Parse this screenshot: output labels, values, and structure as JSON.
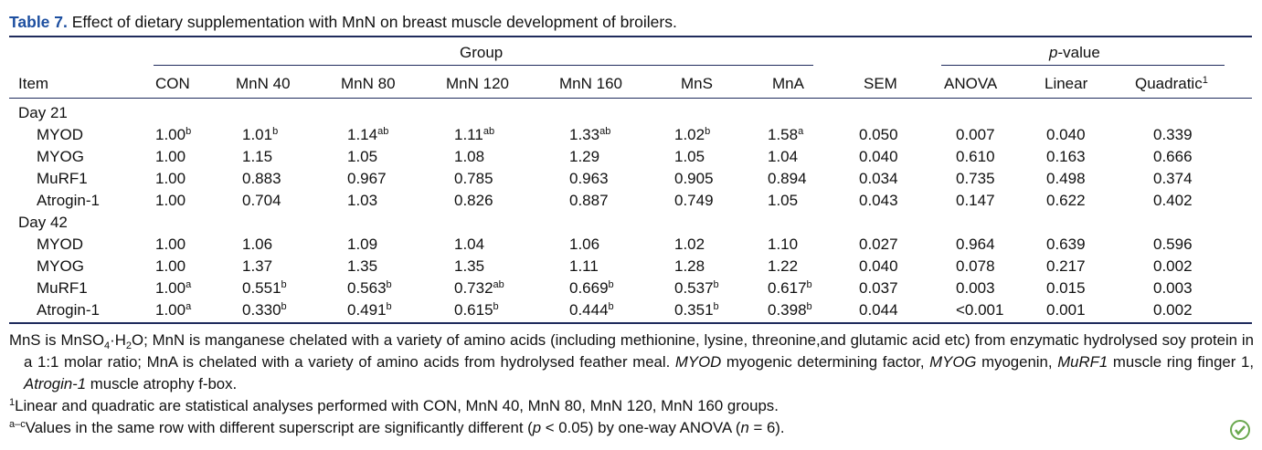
{
  "caption": {
    "label": "Table 7.",
    "text": "Effect of dietary supplementation with MnN on breast muscle development of broilers."
  },
  "table": {
    "group_header": "Group",
    "pvalue_header": {
      "italic": "p",
      "rest": "-value"
    },
    "columns": [
      "Item",
      "CON",
      "MnN 40",
      "MnN 80",
      "MnN 120",
      "MnN 160",
      "MnS",
      "MnA",
      "SEM",
      "ANOVA",
      "Linear",
      {
        "text": "Quadratic",
        "sup": "1"
      }
    ],
    "sections": [
      {
        "label": "Day 21",
        "rows": [
          {
            "item": "MYOD",
            "cells": [
              {
                "text": "1.00",
                "sup": "b"
              },
              {
                "text": "1.01",
                "sup": "b"
              },
              {
                "text": "1.14",
                "sup": "ab"
              },
              {
                "text": "1.11",
                "sup": "ab"
              },
              {
                "text": "1.33",
                "sup": "ab"
              },
              {
                "text": "1.02",
                "sup": "b"
              },
              {
                "text": "1.58",
                "sup": "a"
              },
              "0.050",
              "0.007",
              "0.040",
              "0.339"
            ]
          },
          {
            "item": "MYOG",
            "cells": [
              "1.00",
              "1.15",
              "1.05",
              "1.08",
              "1.29",
              "1.05",
              "1.04",
              "0.040",
              "0.610",
              "0.163",
              "0.666"
            ]
          },
          {
            "item": "MuRF1",
            "cells": [
              "1.00",
              "0.883",
              "0.967",
              "0.785",
              "0.963",
              "0.905",
              "0.894",
              "0.034",
              "0.735",
              "0.498",
              "0.374"
            ]
          },
          {
            "item": "Atrogin-1",
            "cells": [
              "1.00",
              "0.704",
              "1.03",
              "0.826",
              "0.887",
              "0.749",
              "1.05",
              "0.043",
              "0.147",
              "0.622",
              "0.402"
            ]
          }
        ]
      },
      {
        "label": "Day 42",
        "rows": [
          {
            "item": "MYOD",
            "cells": [
              "1.00",
              "1.06",
              "1.09",
              "1.04",
              "1.06",
              "1.02",
              "1.10",
              "0.027",
              "0.964",
              "0.639",
              "0.596"
            ]
          },
          {
            "item": "MYOG",
            "cells": [
              "1.00",
              "1.37",
              "1.35",
              "1.35",
              "1.11",
              "1.28",
              "1.22",
              "0.040",
              "0.078",
              "0.217",
              "0.002"
            ]
          },
          {
            "item": "MuRF1",
            "cells": [
              {
                "text": "1.00",
                "sup": "a"
              },
              {
                "text": "0.551",
                "sup": "b"
              },
              {
                "text": "0.563",
                "sup": "b"
              },
              {
                "text": "0.732",
                "sup": "ab"
              },
              {
                "text": "0.669",
                "sup": "b"
              },
              {
                "text": "0.537",
                "sup": "b"
              },
              {
                "text": "0.617",
                "sup": "b"
              },
              "0.037",
              "0.003",
              "0.015",
              "0.003"
            ]
          },
          {
            "item": "Atrogin-1",
            "cells": [
              {
                "text": "1.00",
                "sup": "a"
              },
              {
                "text": "0.330",
                "sup": "b"
              },
              {
                "text": "0.491",
                "sup": "b"
              },
              {
                "text": "0.615",
                "sup": "b"
              },
              {
                "text": "0.444",
                "sup": "b"
              },
              {
                "text": "0.351",
                "sup": "b"
              },
              {
                "text": "0.398",
                "sup": "b"
              },
              "0.044",
              "<0.001",
              "0.001",
              "0.002"
            ]
          }
        ]
      }
    ]
  },
  "footnotes": [
    [
      "MnS is MnSO",
      {
        "sub": "4"
      },
      "·H",
      {
        "sub": "2"
      },
      "O; MnN is manganese chelated with a variety of amino acids (including methionine, lysine, threonine,and glutamic acid etc) from enzymatic hydrolysed soy protein in a 1:1 molar ratio; MnA is chelated with a variety of amino acids from hydrolysed feather meal. ",
      {
        "i": "MYOD"
      },
      " myogenic determining factor, ",
      {
        "i": "MYOG"
      },
      " myogenin, ",
      {
        "i": "MuRF1"
      },
      " muscle ring finger 1, ",
      {
        "i": "Atrogin-1"
      },
      " muscle atrophy f-box."
    ],
    [
      {
        "sup": "1"
      },
      "Linear and quadratic are statistical analyses performed with CON, MnN 40, MnN 80, MnN 120, MnN 160 groups."
    ],
    [
      {
        "sup": "a–c"
      },
      "Values in the same row with different superscript are significantly different (",
      {
        "i": "p"
      },
      " < 0.05) by one-way ANOVA (",
      {
        "i": "n"
      },
      " = 6)."
    ]
  ]
}
